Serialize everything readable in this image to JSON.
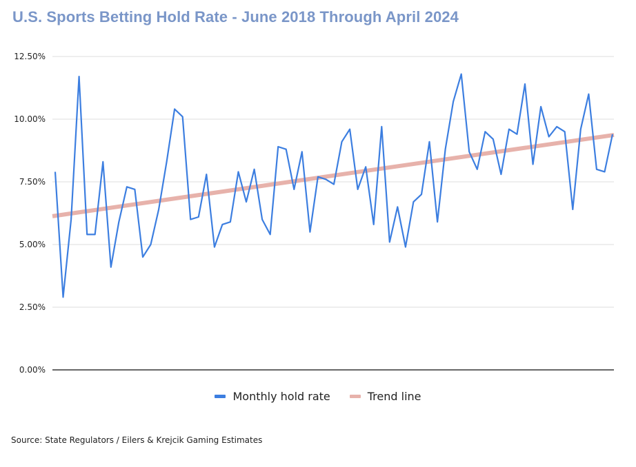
{
  "page": {
    "title": "U.S. Sports Betting Hold Rate - June 2018 Through April 2024",
    "source": "Source: State Regulators / Eilers & Krejcik Gaming Estimates"
  },
  "colors": {
    "title": "#7a96c8",
    "series": "#3c7ee0",
    "trend": "#e7b2ab",
    "grid": "#dddddd",
    "axis": "#666666"
  },
  "chart_data": {
    "type": "line",
    "title": "U.S. Sports Betting Hold Rate - June 2018 Through April 2024",
    "xlabel": "",
    "ylabel": "",
    "x_range": [
      "June 2018",
      "April 2024"
    ],
    "ylim": [
      0,
      12.5
    ],
    "y_ticks": [
      "0.00%",
      "2.50%",
      "5.00%",
      "7.50%",
      "10.00%",
      "12.50%"
    ],
    "y_tick_values": [
      0,
      2.5,
      5,
      7.5,
      10,
      12.5
    ],
    "grid": true,
    "legend_position": "bottom",
    "series": [
      {
        "name": "Monthly hold rate",
        "type": "line",
        "values": [
          7.9,
          2.9,
          6.0,
          11.7,
          5.4,
          5.4,
          8.3,
          4.1,
          5.9,
          7.3,
          7.2,
          4.5,
          5.0,
          6.4,
          8.3,
          10.4,
          10.1,
          6.0,
          6.1,
          7.8,
          4.9,
          5.8,
          5.9,
          7.9,
          6.7,
          8.0,
          6.0,
          5.4,
          8.9,
          8.8,
          7.2,
          8.7,
          5.5,
          7.7,
          7.6,
          7.4,
          9.1,
          9.6,
          7.2,
          8.1,
          5.8,
          9.7,
          5.1,
          6.5,
          4.9,
          6.7,
          7.0,
          9.1,
          5.9,
          8.8,
          10.7,
          11.8,
          8.7,
          8.0,
          9.5,
          9.2,
          7.8,
          9.6,
          9.4,
          11.4,
          8.2,
          10.5,
          9.3,
          9.7,
          9.5,
          6.4,
          9.6,
          11.0,
          8.0,
          7.9,
          9.4
        ]
      },
      {
        "name": "Trend line",
        "type": "line",
        "values": [
          6.13,
          9.37
        ]
      }
    ]
  }
}
